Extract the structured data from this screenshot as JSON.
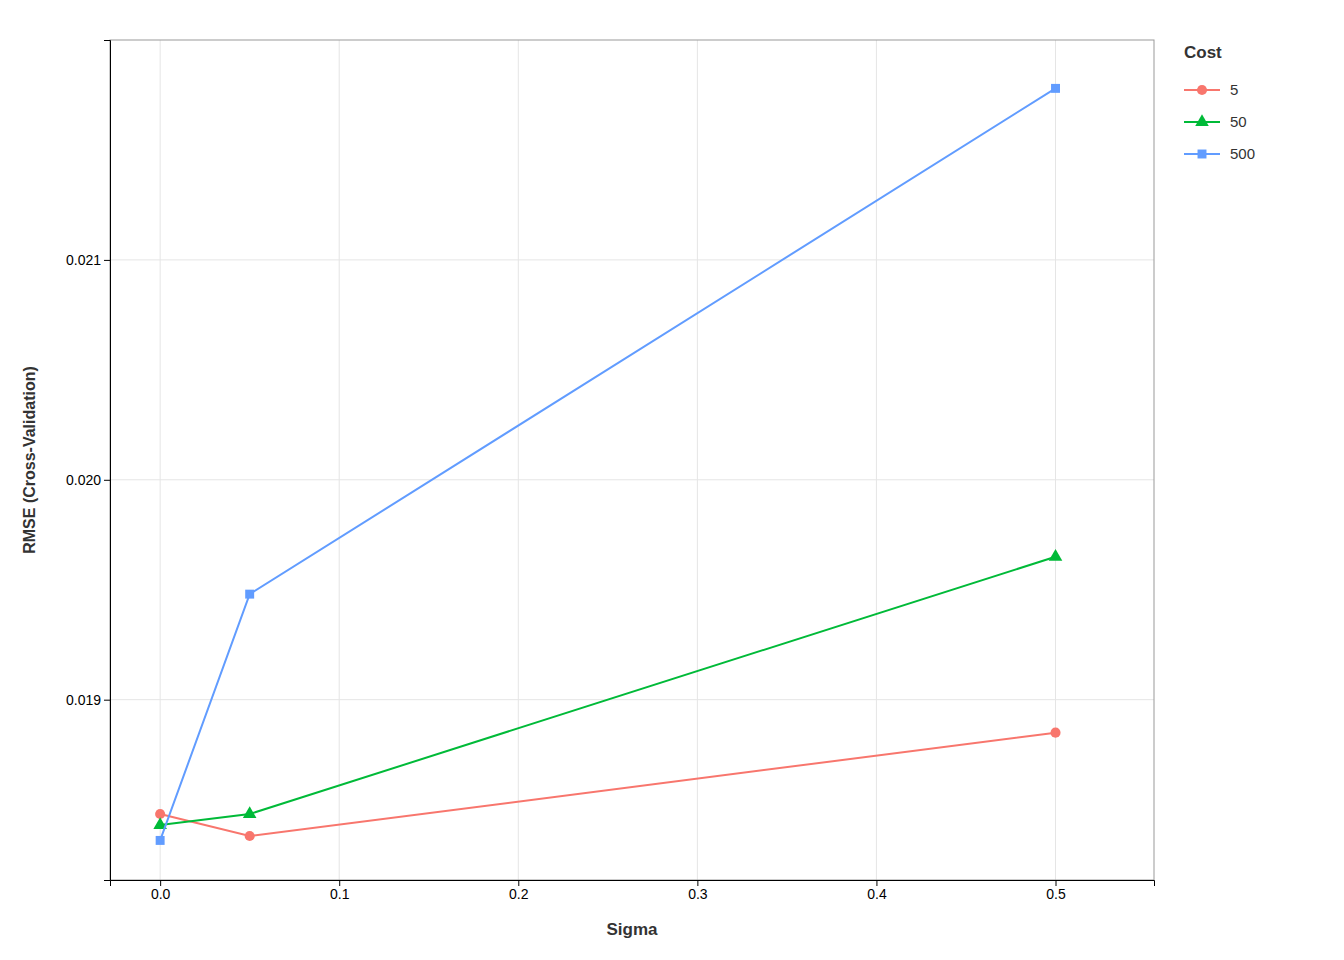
{
  "chart_data": {
    "type": "line",
    "xlabel": "Sigma",
    "ylabel": "RMSE (Cross-Validation)",
    "legend_title": "Cost",
    "x": [
      0.0,
      0.05,
      0.5
    ],
    "series": [
      {
        "name": "5",
        "color": "#F8766D",
        "marker": "circle",
        "values": [
          0.01848,
          0.01838,
          0.01885
        ]
      },
      {
        "name": "50",
        "color": "#00BA38",
        "marker": "triangle",
        "values": [
          0.01843,
          0.01848,
          0.01965
        ]
      },
      {
        "name": "500",
        "color": "#619CFF",
        "marker": "square",
        "values": [
          0.01836,
          0.01948,
          0.02178
        ]
      }
    ],
    "xlim": [
      -0.028,
      0.555
    ],
    "xticks": [
      {
        "value": 0.0,
        "label": "0.0"
      },
      0.1,
      0.2,
      0.3,
      0.4,
      0.5
    ],
    "ylim": [
      0.01818,
      0.022
    ],
    "yticks": [
      0.019,
      {
        "value": 0.02,
        "label": "0.020"
      },
      0.021
    ],
    "grid": true,
    "legend": "right"
  }
}
